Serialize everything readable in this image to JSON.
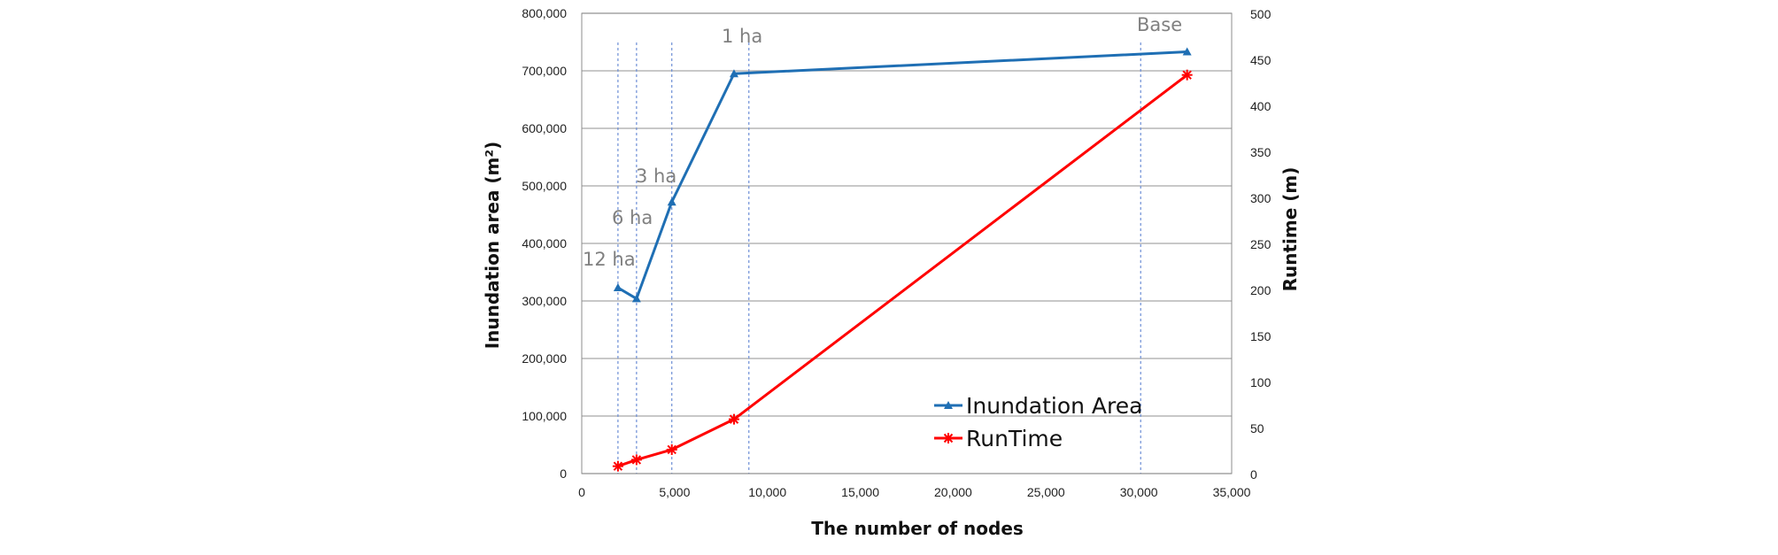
{
  "chart_data": {
    "type": "line",
    "title": "",
    "xlabel": "The number of nodes",
    "ylabel_left": "Inundation area (m²)",
    "ylabel_right": "Runtime (m)",
    "xlim": [
      0,
      35000
    ],
    "ylim_left": [
      0,
      800000
    ],
    "ylim_right": [
      0,
      500
    ],
    "x_ticks": [
      "0",
      "5,000",
      "10,000",
      "15,000",
      "20,000",
      "25,000",
      "30,000",
      "35,000"
    ],
    "y_left_ticks": [
      "0",
      "100,000",
      "200,000",
      "300,000",
      "400,000",
      "500,000",
      "600,000",
      "700,000",
      "800,000"
    ],
    "y_right_ticks": [
      "0",
      "50",
      "100",
      "150",
      "200",
      "250",
      "300",
      "350",
      "400",
      "450",
      "500"
    ],
    "grid": "horizontal",
    "legend_position": "bottom-right",
    "series": [
      {
        "name": "Inundation Area",
        "axis": "left",
        "color": "#1f6fb4",
        "marker": "triangle",
        "points": [
          {
            "x": 1950,
            "y": 323000
          },
          {
            "x": 2950,
            "y": 304000
          },
          {
            "x": 4850,
            "y": 472000
          },
          {
            "x": 8200,
            "y": 695000
          },
          {
            "x": 32600,
            "y": 733000
          }
        ]
      },
      {
        "name": "RunTime",
        "axis": "right",
        "color": "#ff0000",
        "marker": "star",
        "points": [
          {
            "x": 1950,
            "y": 8
          },
          {
            "x": 2950,
            "y": 15
          },
          {
            "x": 4850,
            "y": 26
          },
          {
            "x": 8200,
            "y": 59
          },
          {
            "x": 32600,
            "y": 433
          }
        ]
      }
    ],
    "annotations": [
      {
        "text": "12 ha",
        "x": 1950
      },
      {
        "text": "6 ha",
        "x": 2950
      },
      {
        "text": "3 ha",
        "x": 4850
      },
      {
        "text": "1 ha",
        "x": 9000
      },
      {
        "text": "Base",
        "x": 30100
      }
    ],
    "guide_lines_x": [
      1950,
      2950,
      4850,
      9000,
      30100
    ]
  }
}
